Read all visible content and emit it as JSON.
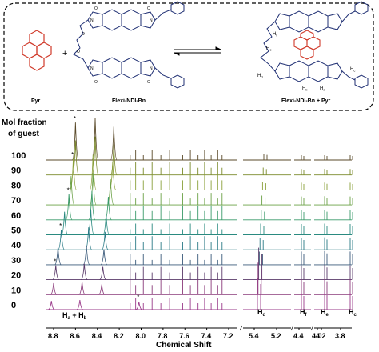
{
  "scheme": {
    "pyr_label": "Pyr",
    "plus": "+",
    "ndi_label": "Flexi-NDI-Bn",
    "complex_label": "Flexi-NDI-Bn + Pyr",
    "complex_atoms": {
      "a": "H",
      "b": "H",
      "c": "H",
      "d": "H",
      "e": "H",
      "f": "H",
      "sub_a": "a",
      "sub_b": "b",
      "sub_c": "c",
      "sub_d": "d",
      "sub_e": "e",
      "sub_f": "f"
    },
    "atom_O": "O",
    "atom_N": "N",
    "colors": {
      "pyrene": "#d03a2a",
      "ndi": "#1f2f73",
      "frame": "#000000"
    }
  },
  "spectra": {
    "ylabel_line1": "Mol fraction",
    "ylabel_line2": "of guest",
    "xlabel": "Chemical Shift",
    "fractions": [
      "100",
      "90",
      "80",
      "70",
      "60",
      "50",
      "40",
      "30",
      "20",
      "10",
      "0"
    ],
    "colors": [
      "#5a4a2a",
      "#7a8a2a",
      "#8aa03a",
      "#6aa045",
      "#3a9a6a",
      "#2a8a80",
      "#2a7a86",
      "#3a5a7a",
      "#5a3a6a",
      "#8a3a7a",
      "#9a3a8a"
    ],
    "ticks_left": [
      "8.8",
      "8.6",
      "8.4",
      "8.2",
      "8.0",
      "7.8",
      "7.6",
      "7.4",
      "7.2"
    ],
    "ticks_mid": [
      "5.4",
      "5.2"
    ],
    "ticks_m2": [
      "4.4",
      "4.2"
    ],
    "ticks_right": [
      "4.0",
      "3.8"
    ],
    "star": "*",
    "peak_labels": [
      {
        "text": "Ha + Hb",
        "main": "H",
        "sub1": "a",
        "plus": " + ",
        "main2": "H",
        "sub2": "b"
      },
      {
        "text": "Hd",
        "main": "H",
        "sub": "d"
      },
      {
        "text": "Hf",
        "main": "H",
        "sub": "f"
      },
      {
        "text": "He",
        "main": "H",
        "sub": "e"
      },
      {
        "text": "Hc",
        "main": "H",
        "sub": "c"
      }
    ]
  }
}
